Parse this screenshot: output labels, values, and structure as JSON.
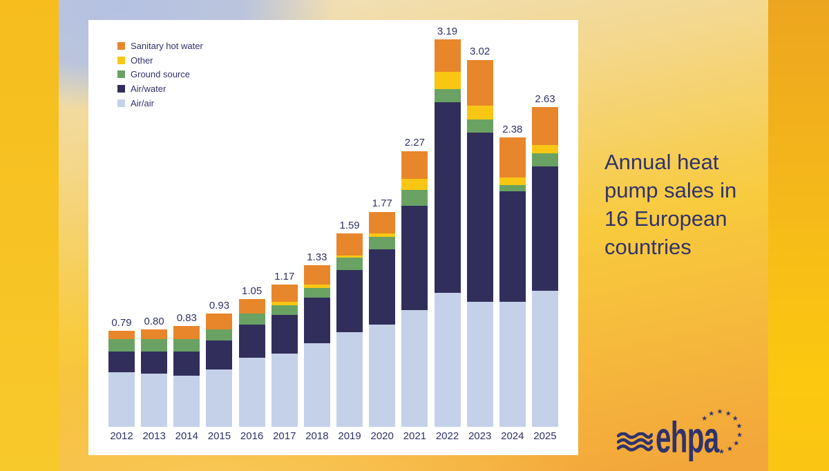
{
  "legend": {
    "items": [
      {
        "label": "Sanitary hot water",
        "color": "#e8862b"
      },
      {
        "label": "Other",
        "color": "#f9c713"
      },
      {
        "label": "Ground source",
        "color": "#69a263"
      },
      {
        "label": "Air/water",
        "color": "#312e5c"
      },
      {
        "label": "Air/air",
        "color": "#c5d1e9"
      }
    ]
  },
  "chart_data": {
    "type": "bar",
    "stacked": true,
    "categories": [
      "2012",
      "2013",
      "2014",
      "2015",
      "2016",
      "2017",
      "2018",
      "2019",
      "2020",
      "2021",
      "2022",
      "2023",
      "2024",
      "2025"
    ],
    "totals": [
      "0.79",
      "0.80",
      "0.83",
      "0.93",
      "1.05",
      "1.17",
      "1.33",
      "1.59",
      "1.77",
      "2.27",
      "3.19",
      "3.02",
      "2.38",
      "2.63"
    ],
    "series": [
      {
        "name": "Air/air",
        "color": "#c5d1e9",
        "values": [
          0.45,
          0.44,
          0.42,
          0.47,
          0.57,
          0.6,
          0.69,
          0.78,
          0.84,
          0.96,
          1.1,
          1.03,
          1.03,
          1.12
        ]
      },
      {
        "name": "Air/water",
        "color": "#312e5c",
        "values": [
          0.17,
          0.18,
          0.2,
          0.24,
          0.27,
          0.32,
          0.37,
          0.51,
          0.62,
          0.86,
          1.57,
          1.39,
          0.91,
          1.02
        ]
      },
      {
        "name": "Ground source",
        "color": "#69a263",
        "values": [
          0.1,
          0.1,
          0.1,
          0.09,
          0.09,
          0.08,
          0.08,
          0.1,
          0.1,
          0.13,
          0.11,
          0.11,
          0.05,
          0.11
        ]
      },
      {
        "name": "Other",
        "color": "#f9c713",
        "values": [
          0.0,
          0.0,
          0.0,
          0.0,
          0.0,
          0.03,
          0.03,
          0.02,
          0.03,
          0.09,
          0.14,
          0.11,
          0.06,
          0.07
        ]
      },
      {
        "name": "Sanitary hot water",
        "color": "#e8862b",
        "values": [
          0.07,
          0.08,
          0.11,
          0.13,
          0.12,
          0.14,
          0.16,
          0.18,
          0.18,
          0.23,
          0.27,
          0.38,
          0.33,
          0.31
        ]
      }
    ],
    "title": "Annual heat pump sales in 16 European countries",
    "xlabel": "",
    "ylabel": "",
    "ylim": [
      0,
      3.19
    ],
    "grid": false,
    "value_axis_visible": false,
    "legend_position": "top-left",
    "data_labels": "total above each bar"
  },
  "headline": {
    "lines": [
      "Annual heat",
      "pump sales in",
      "16 European",
      "countries"
    ]
  },
  "logo": {
    "text": "ehpa",
    "star_glyph": "★",
    "star_count": 10,
    "colors": {
      "navy": "#30336b"
    }
  },
  "palette": {
    "card_bg": "#ffffff",
    "text_navy": "#2f3168",
    "band_left_gold": "#f7c120",
    "band_right_amber": "#f5ba1a",
    "bg_top_left_blue": "#b4c1e1",
    "bg_cream": "#efe2c8",
    "bg_gold": "#f8ca3d",
    "bg_orange": "#f3a73b"
  }
}
